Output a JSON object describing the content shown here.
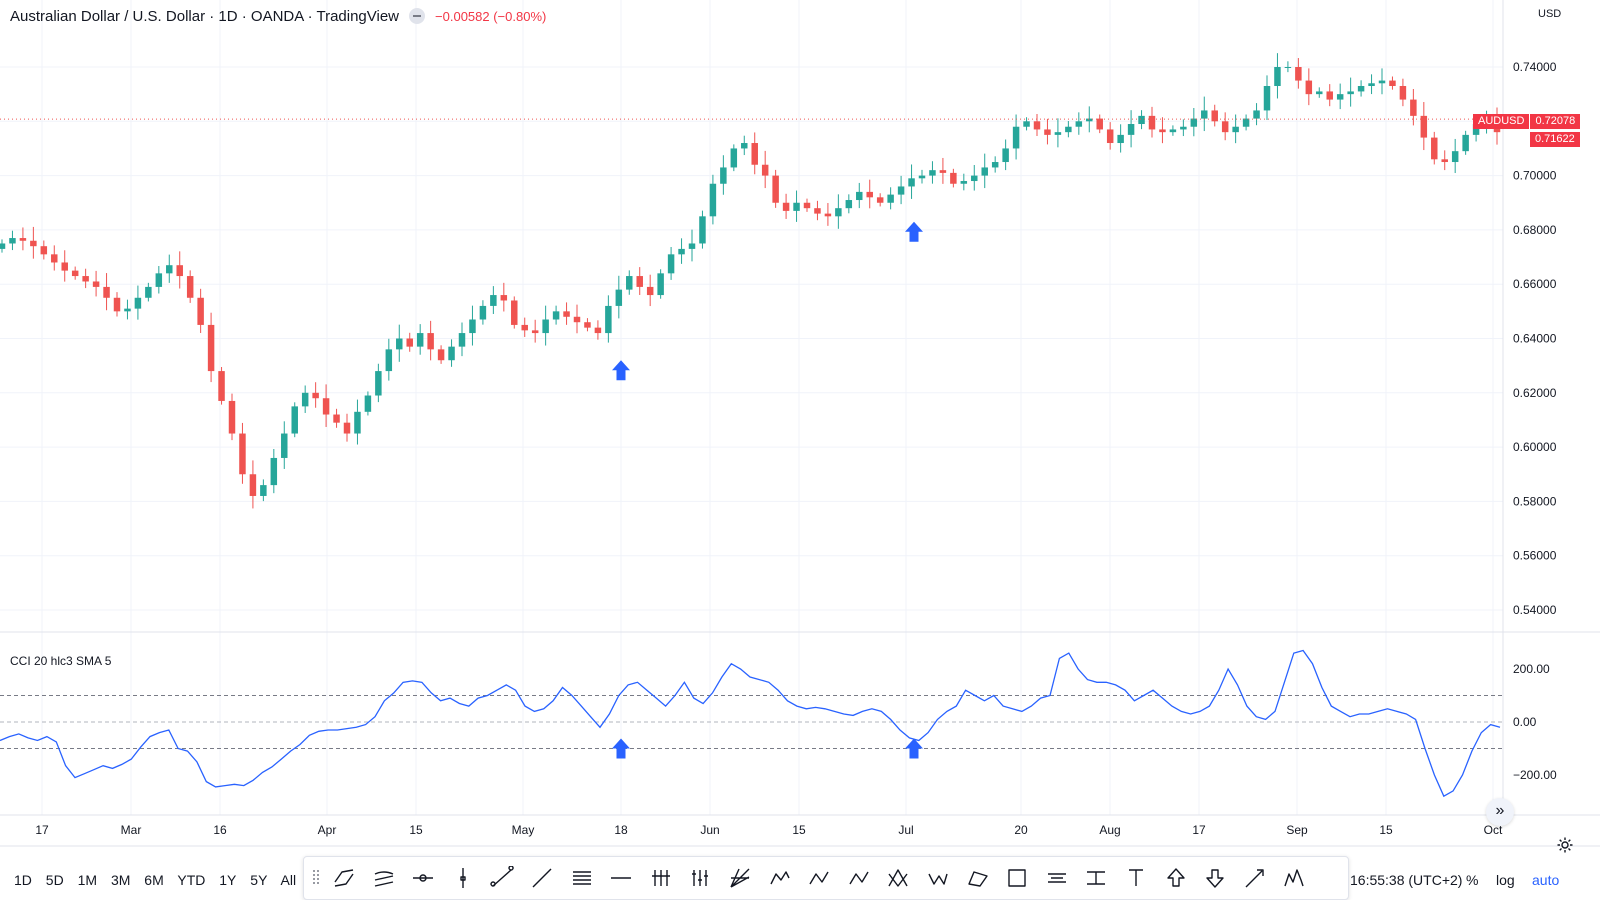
{
  "header": {
    "title": "Australian Dollar / U.S. Dollar · 1D · OANDA · TradingView",
    "change": "−0.00582 (−0.80%)"
  },
  "price_axis": {
    "currency": "USD",
    "labels": [
      "0.74000",
      "0.72000",
      "0.70000",
      "0.68000",
      "0.66000",
      "0.64000",
      "0.62000",
      "0.60000",
      "0.58000",
      "0.56000",
      "0.54000"
    ],
    "tag_symbol": "AUDUSD",
    "tag_price": "0.72078",
    "tag_last": "0.71622",
    "tag_color": "#f23645"
  },
  "indicator": {
    "label": "CCI 20 hlc3 SMA 5",
    "axis_labels": [
      "200.00",
      "0.00",
      "−200.00"
    ],
    "line_color": "#2962ff"
  },
  "time_axis": {
    "labels": [
      "17",
      "Mar",
      "16",
      "Apr",
      "15",
      "May",
      "18",
      "Jun",
      "15",
      "Jul",
      "20",
      "Aug",
      "17",
      "Sep",
      "15",
      "Oct"
    ]
  },
  "colors": {
    "up": "#26a69a",
    "down": "#ef5350",
    "arrow": "#2962ff"
  },
  "chart_data": {
    "type": "candlestick",
    "series": [
      {
        "name": "AUDUSD",
        "close": [
          0.675,
          0.677,
          0.676,
          0.674,
          0.671,
          0.668,
          0.665,
          0.663,
          0.661,
          0.659,
          0.655,
          0.65,
          0.651,
          0.655,
          0.659,
          0.664,
          0.667,
          0.663,
          0.655,
          0.645,
          0.628,
          0.617,
          0.605,
          0.59,
          0.582,
          0.586,
          0.596,
          0.605,
          0.615,
          0.62,
          0.618,
          0.612,
          0.609,
          0.605,
          0.613,
          0.619,
          0.628,
          0.636,
          0.64,
          0.637,
          0.642,
          0.636,
          0.632,
          0.637,
          0.642,
          0.647,
          0.652,
          0.656,
          0.654,
          0.645,
          0.643,
          0.642,
          0.647,
          0.65,
          0.648,
          0.646,
          0.644,
          0.642,
          0.652,
          0.658,
          0.663,
          0.659,
          0.656,
          0.664,
          0.671,
          0.673,
          0.675,
          0.685,
          0.697,
          0.703,
          0.71,
          0.712,
          0.704,
          0.7,
          0.69,
          0.687,
          0.69,
          0.688,
          0.686,
          0.685,
          0.688,
          0.691,
          0.694,
          0.692,
          0.69,
          0.693,
          0.696,
          0.699,
          0.7,
          0.702,
          0.701,
          0.697,
          0.698,
          0.7,
          0.703,
          0.705,
          0.71,
          0.718,
          0.72,
          0.717,
          0.715,
          0.716,
          0.718,
          0.72,
          0.721,
          0.717,
          0.712,
          0.715,
          0.719,
          0.722,
          0.717,
          0.716,
          0.717,
          0.718,
          0.721,
          0.724,
          0.72,
          0.716,
          0.718,
          0.721,
          0.724,
          0.733,
          0.74,
          0.74,
          0.735,
          0.73,
          0.731,
          0.728,
          0.73,
          0.731,
          0.733,
          0.734,
          0.735,
          0.733,
          0.728,
          0.722,
          0.714,
          0.706,
          0.705,
          0.709,
          0.715,
          0.719,
          0.72,
          0.716
        ]
      },
      {
        "name": "CCI 20 hlc3 SMA 5",
        "values": [
          -70,
          -55,
          -45,
          -60,
          -70,
          -55,
          -75,
          -165,
          -210,
          -195,
          -180,
          -165,
          -175,
          -160,
          -140,
          -95,
          -55,
          -40,
          -30,
          -100,
          -110,
          -150,
          -225,
          -245,
          -240,
          -235,
          -240,
          -220,
          -190,
          -170,
          -140,
          -110,
          -85,
          -50,
          -35,
          -30,
          -30,
          -25,
          -20,
          -10,
          20,
          80,
          110,
          150,
          155,
          150,
          110,
          80,
          90,
          70,
          60,
          90,
          100,
          120,
          140,
          120,
          60,
          40,
          50,
          80,
          130,
          100,
          60,
          20,
          -20,
          30,
          100,
          140,
          150,
          120,
          90,
          60,
          100,
          150,
          90,
          70,
          110,
          170,
          220,
          200,
          170,
          160,
          150,
          120,
          80,
          60,
          50,
          55,
          50,
          40,
          30,
          25,
          40,
          50,
          40,
          10,
          -30,
          -60,
          -70,
          -40,
          10,
          40,
          60,
          120,
          100,
          80,
          100,
          60,
          50,
          40,
          60,
          90,
          100,
          240,
          260,
          200,
          160,
          150,
          150,
          140,
          120,
          80,
          100,
          120,
          90,
          60,
          40,
          30,
          40,
          60,
          120,
          200,
          140,
          60,
          20,
          10,
          40,
          150,
          260,
          270,
          220,
          130,
          60,
          40,
          20,
          30,
          30,
          40,
          50,
          40,
          30,
          10,
          -100,
          -200,
          -280,
          -260,
          -200,
          -110,
          -40,
          -10,
          -20
        ],
        "levels": [
          100,
          0,
          -100
        ]
      }
    ],
    "y_range": [
      0.535,
      0.745
    ],
    "cci_range": [
      -330,
      330
    ],
    "arrows": [
      {
        "pane": "price",
        "x": "May 18",
        "value": 0.632
      },
      {
        "pane": "price",
        "x": "Jul 2",
        "value": 0.683
      },
      {
        "pane": "cci",
        "x": "May 18",
        "value": -70
      },
      {
        "pane": "cci",
        "x": "Jul 2",
        "value": -70
      }
    ]
  },
  "bottom": {
    "ranges": [
      "1D",
      "5D",
      "1M",
      "3M",
      "6M",
      "YTD",
      "1Y",
      "5Y",
      "All"
    ],
    "tools": [
      "parallel-channel-icon",
      "regression-trend-icon",
      "horizontal-ray-icon",
      "vertical-line-icon",
      "trend-line-icon",
      "ray-icon",
      "fib-retracement-icon",
      "horizontal-line-icon",
      "pitchfork-icon",
      "gann-fan-icon",
      "fib-fan-icon",
      "xabcd-pattern-icon",
      "abcd-pattern-icon",
      "elliott-wave-icon",
      "head-shoulders-icon",
      "wxy-wave-icon",
      "triangle-pattern-icon",
      "rectangle-icon",
      "date-range-icon",
      "price-range-icon",
      "text-icon",
      "arrow-up-icon",
      "arrow-down-icon",
      "arrow-marker-icon",
      "cypher-pattern-icon"
    ],
    "timestamp": "16:55:38 (UTC+2)",
    "percent": "%",
    "log": "log",
    "auto": "auto"
  }
}
